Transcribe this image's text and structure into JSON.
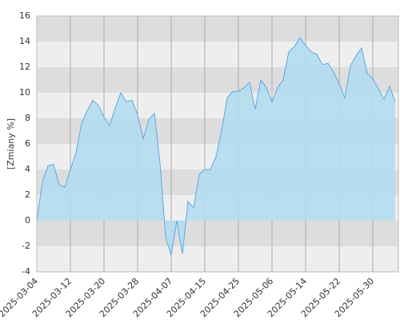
{
  "chart_data": {
    "type": "area",
    "y_label": "[Zmiany %]",
    "categories": [
      "2025-03-04",
      null,
      null,
      null,
      null,
      null,
      "2025-03-12",
      null,
      null,
      null,
      null,
      null,
      "2025-03-20",
      null,
      null,
      null,
      null,
      null,
      "2025-03-28",
      null,
      null,
      null,
      null,
      null,
      "2025-04-07",
      null,
      null,
      null,
      null,
      null,
      "2025-04-15",
      null,
      null,
      null,
      null,
      null,
      "2025-04-25",
      null,
      null,
      null,
      null,
      null,
      "2025-05-06",
      null,
      null,
      null,
      null,
      null,
      "2025-05-14",
      null,
      null,
      null,
      null,
      null,
      "2025-05-22",
      null,
      null,
      null,
      null,
      null,
      "2025-05-30",
      null,
      null,
      null,
      null
    ],
    "values": [
      0,
      3.0,
      4.3,
      4.4,
      2.8,
      2.6,
      4.0,
      5.3,
      7.6,
      8.6,
      9.4,
      9.0,
      8.1,
      7.4,
      8.8,
      10.0,
      9.3,
      9.4,
      8.3,
      6.4,
      7.9,
      8.4,
      4.5,
      -1.3,
      -2.7,
      0.0,
      -2.6,
      1.5,
      1.0,
      3.6,
      4.0,
      4.0,
      5.0,
      7.0,
      9.6,
      10.1,
      10.1,
      10.4,
      10.8,
      8.7,
      11.0,
      10.4,
      9.3,
      10.4,
      11.0,
      13.2,
      13.6,
      14.3,
      13.7,
      13.2,
      13.0,
      12.2,
      12.3,
      11.6,
      10.7,
      9.6,
      12.1,
      12.9,
      13.5,
      11.5,
      11.1,
      10.3,
      9.5,
      10.5,
      9.3
    ],
    "color": "#5aa9e6",
    "fill": "#b3dcef",
    "ylim": [
      -4,
      16
    ],
    "yticks": [
      -4,
      -2,
      0,
      2,
      4,
      6,
      8,
      10,
      12,
      14,
      16
    ],
    "band_colors": [
      "#dddddd",
      "#eeeeee"
    ],
    "grid": true
  }
}
